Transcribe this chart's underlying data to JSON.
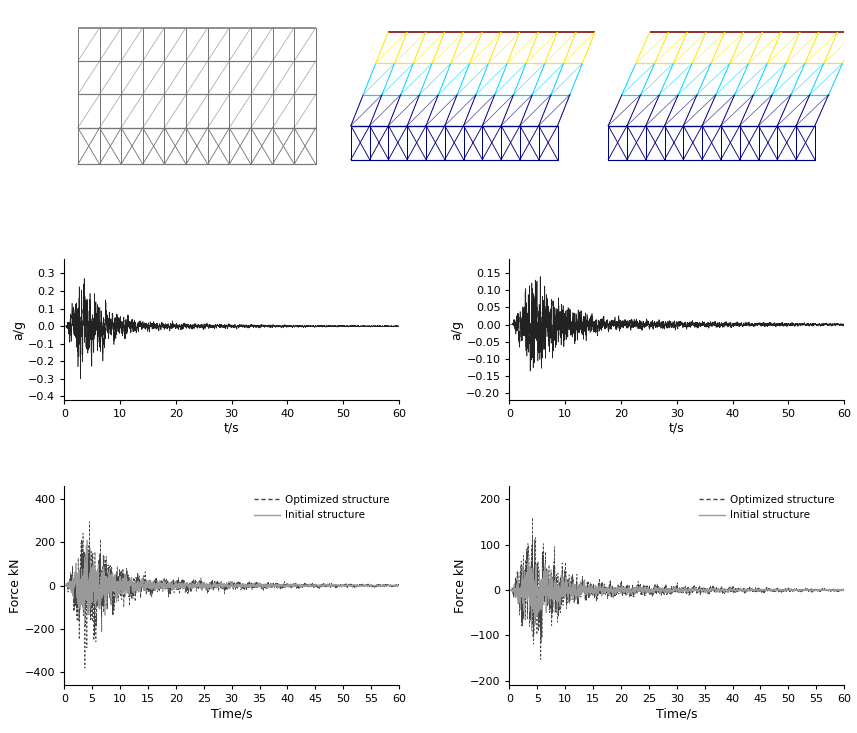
{
  "fig_width": 8.57,
  "fig_height": 7.33,
  "dpi": 100,
  "bg_color": "#ffffff",
  "accel1": {
    "ylabel": "a/g",
    "xlabel": "t/s",
    "xlim": [
      0,
      60
    ],
    "ylim": [
      -0.42,
      0.38
    ],
    "yticks": [
      -0.4,
      -0.3,
      -0.2,
      -0.1,
      0.0,
      0.1,
      0.2,
      0.3
    ],
    "xticks": [
      0,
      10,
      20,
      30,
      40,
      50,
      60
    ],
    "color": "#222222",
    "linewidth": 0.45
  },
  "accel2": {
    "ylabel": "a/g",
    "xlabel": "t/s",
    "xlim": [
      0,
      60
    ],
    "ylim": [
      -0.22,
      0.19
    ],
    "yticks": [
      -0.2,
      -0.15,
      -0.1,
      -0.05,
      0.0,
      0.05,
      0.1,
      0.15
    ],
    "xticks": [
      0,
      10,
      20,
      30,
      40,
      50,
      60
    ],
    "color": "#222222",
    "linewidth": 0.45
  },
  "force1": {
    "ylabel": "Force kN",
    "xlabel": "Time/s",
    "xlim": [
      0,
      60
    ],
    "ylim": [
      -460,
      460
    ],
    "yticks": [
      -400,
      -200,
      0,
      200,
      400
    ],
    "xticks": [
      0,
      5,
      10,
      15,
      20,
      25,
      30,
      35,
      40,
      45,
      50,
      55,
      60
    ],
    "opt_color": "#444444",
    "init_color": "#999999",
    "opt_linewidth": 0.55,
    "init_linewidth": 0.55
  },
  "force2": {
    "ylabel": "Force kN",
    "xlabel": "Time/s",
    "xlim": [
      0,
      60
    ],
    "ylim": [
      -210,
      230
    ],
    "yticks": [
      -200,
      -100,
      0,
      100,
      200
    ],
    "xticks": [
      0,
      5,
      10,
      15,
      20,
      25,
      30,
      35,
      40,
      45,
      50,
      55,
      60
    ],
    "opt_color": "#444444",
    "init_color": "#999999",
    "opt_linewidth": 0.55,
    "init_linewidth": 0.55
  },
  "n_points": 6000,
  "dt": 0.01
}
